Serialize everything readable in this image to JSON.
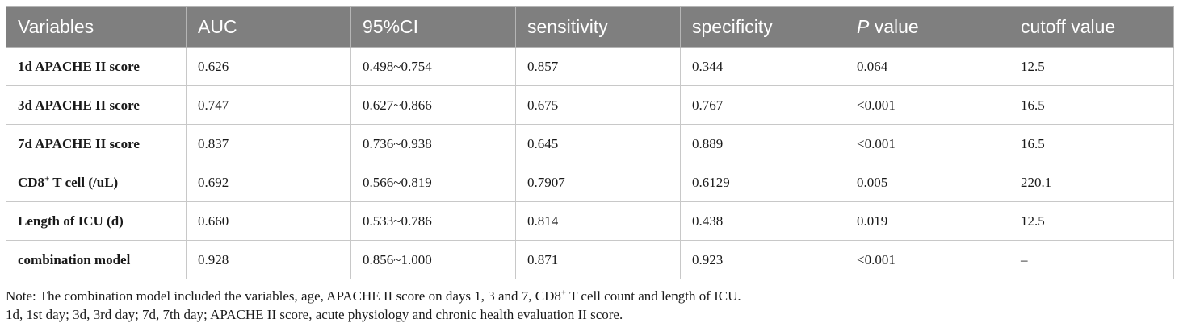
{
  "table": {
    "headers": [
      "Variables",
      "AUC",
      "95%CI",
      "sensitivity",
      "specificity",
      "P value",
      "cutoff value"
    ],
    "header_italic_part": "P",
    "header_rest": " value",
    "rows": [
      {
        "variable": "1d APACHE II score",
        "auc": "0.626",
        "ci": "0.498~0.754",
        "sensitivity": "0.857",
        "specificity": "0.344",
        "p": "0.064",
        "cutoff": "12.5"
      },
      {
        "variable": "3d APACHE II score",
        "auc": "0.747",
        "ci": "0.627~0.866",
        "sensitivity": "0.675",
        "specificity": "0.767",
        "p": "<0.001",
        "cutoff": "16.5"
      },
      {
        "variable": "7d APACHE II score",
        "auc": "0.837",
        "ci": "0.736~0.938",
        "sensitivity": "0.645",
        "specificity": "0.889",
        "p": "<0.001",
        "cutoff": "16.5"
      },
      {
        "variable_pre": "CD8",
        "variable_sup": "+",
        "variable_post": " T cell (/uL)",
        "auc": "0.692",
        "ci": "0.566~0.819",
        "sensitivity": "0.7907",
        "specificity": "0.6129",
        "p": "0.005",
        "cutoff": "220.1"
      },
      {
        "variable": "Length of ICU (d)",
        "auc": "0.660",
        "ci": "0.533~0.786",
        "sensitivity": "0.814",
        "specificity": "0.438",
        "p": "0.019",
        "cutoff": "12.5"
      },
      {
        "variable": "combination model",
        "auc": "0.928",
        "ci": "0.856~1.000",
        "sensitivity": "0.871",
        "specificity": "0.923",
        "p": "<0.001",
        "cutoff": "–"
      }
    ]
  },
  "notes": {
    "line1_pre": "Note: The combination model included the variables, age, APACHE II score on days 1, 3 and 7, CD8",
    "line1_sup": "+",
    "line1_post": " T cell count and length of ICU.",
    "line2": "1d, 1st day; 3d, 3rd day; 7d, 7th day; APACHE II score, acute physiology and chronic health evaluation II score."
  }
}
